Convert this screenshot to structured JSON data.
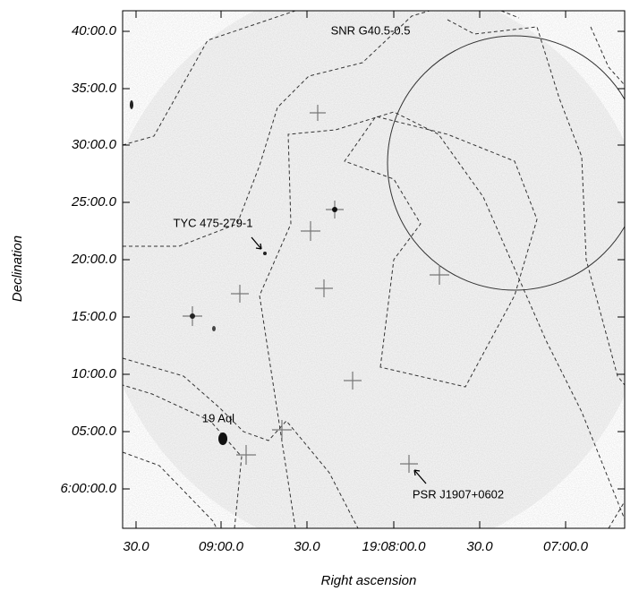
{
  "axes": {
    "x_label": "Right ascension",
    "y_label": "Declination",
    "x_ticks": [
      "30.0",
      "09:00.0",
      "30.0",
      "19:08:00.0",
      "30.0",
      "07:00.0"
    ],
    "y_ticks": [
      "40:00.0",
      "35:00.0",
      "30:00.0",
      "25:00.0",
      "20:00.0",
      "15:00.0",
      "10:00.0",
      "05:00.0",
      "6:00:00.0"
    ]
  },
  "annotations": [
    "SNR G40.5-0.5",
    "TYC 475-279-1",
    "19 Aql",
    "PSR J1907+0602"
  ]
}
